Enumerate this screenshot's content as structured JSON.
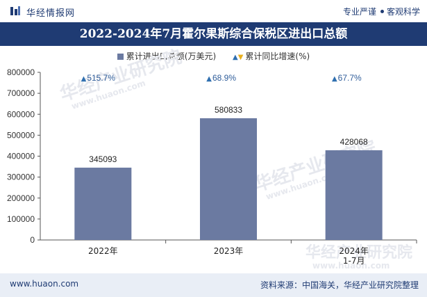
{
  "header": {
    "brand": "华经情报网",
    "slogan_left": "专业严谨",
    "slogan_right": "客观科学"
  },
  "chart_title": "2022-2024年7月霍尔果斯综合保税区进出口总额",
  "legend": {
    "bar_label": "累计进出口总额(万美元)",
    "growth_label": "累计同比增速(%)"
  },
  "watermark": {
    "cn": "华经产业研究院",
    "en": "www.huaon.com"
  },
  "footer": {
    "site": "www.huaon.com",
    "source": "资料来源：中国海关，华经产业研究院整理"
  },
  "colors": {
    "bar": "#6b7aa1",
    "header": "#1f3b73",
    "up_arrow": "#2f6fb0",
    "down_arrow": "#e8b020"
  },
  "chart_data": {
    "type": "bar",
    "title": "2022-2024年7月霍尔果斯综合保税区进出口总额",
    "categories": [
      "2022年",
      "2023年",
      "2024年\n1-7月"
    ],
    "series": [
      {
        "name": "累计进出口总额(万美元)",
        "values": [
          345093,
          580833,
          428068
        ]
      },
      {
        "name": "累计同比增速(%)",
        "values": [
          515.7,
          68.9,
          67.7
        ]
      }
    ],
    "growth_labels": [
      "515.7%",
      "68.9%",
      "67.7%"
    ],
    "ylim": [
      0,
      800000
    ],
    "yticks": [
      0,
      100000,
      200000,
      300000,
      400000,
      500000,
      600000,
      700000,
      800000
    ],
    "grid": false,
    "legend_position": "top-center"
  }
}
